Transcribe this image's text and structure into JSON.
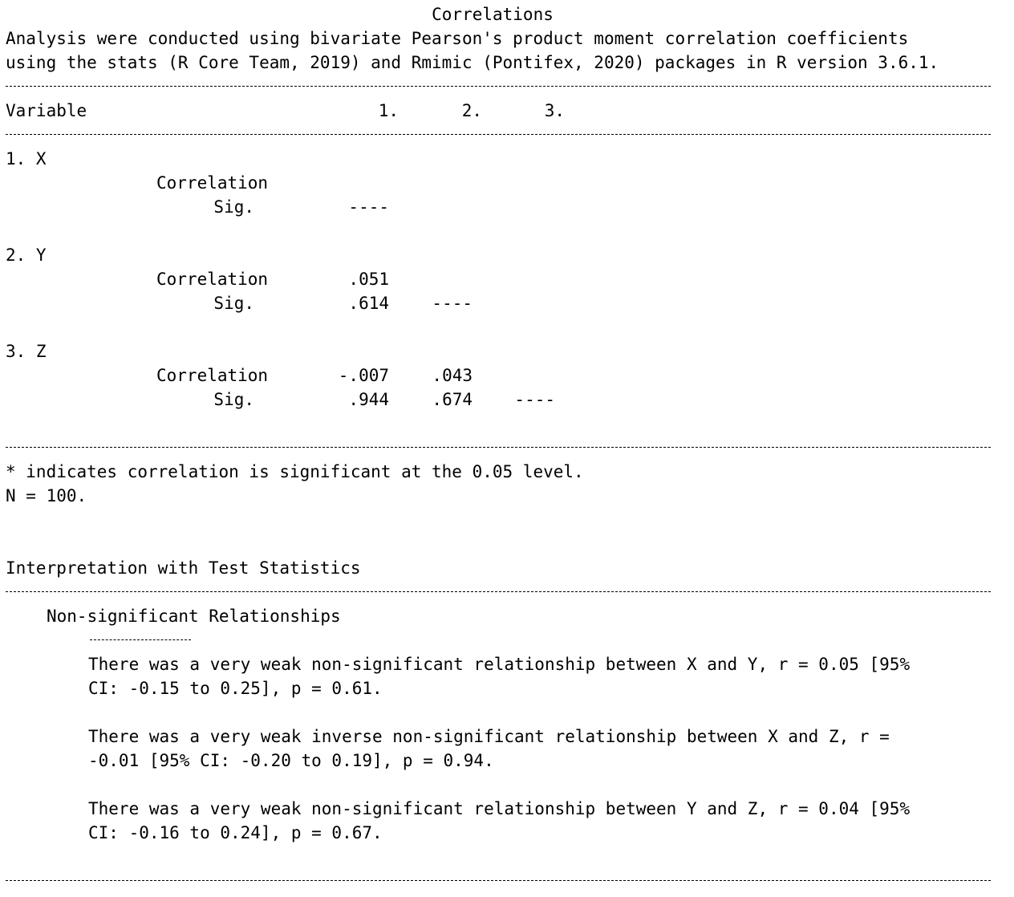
{
  "title": "Correlations",
  "intro_line1": "Analysis were conducted using bivariate Pearson's product moment correlation coefficients",
  "intro_line2": "using the stats (R Core Team, 2019) and Rmimic (Pontifex, 2020) packages in R version 3.6.1.",
  "table": {
    "header_variable": "Variable",
    "col1": "1.",
    "col2": "2.",
    "col3": "3.",
    "correlation_label": "Correlation",
    "sig_label": "Sig.",
    "diag": "----",
    "rows": [
      {
        "name": "1. X"
      },
      {
        "name": "2. Y",
        "corr1": ".051",
        "sig1": ".614"
      },
      {
        "name": "3. Z",
        "corr1": "-.007",
        "sig1": ".944",
        "corr2": ".043",
        "sig2": ".674"
      }
    ]
  },
  "note_sig": "* indicates correlation is significant at the 0.05 level.",
  "note_n": "N = 100.",
  "interpretation": {
    "heading": "Interpretation with Test Statistics",
    "subheading": "Non-significant Relationships",
    "paragraphs": [
      {
        "line1": "There was a very weak non-significant relationship between X and Y, r = 0.05 [95%",
        "line2": "CI: -0.15 to 0.25], p = 0.61."
      },
      {
        "line1": "There was a very weak inverse non-significant relationship between X and Z, r =",
        "line2": "-0.01 [95% CI: -0.20 to 0.19], p = 0.94."
      },
      {
        "line1": "There was a very weak non-significant relationship between Y and Z, r = 0.04 [95%",
        "line2": "CI: -0.16 to 0.24], p = 0.67."
      }
    ]
  }
}
